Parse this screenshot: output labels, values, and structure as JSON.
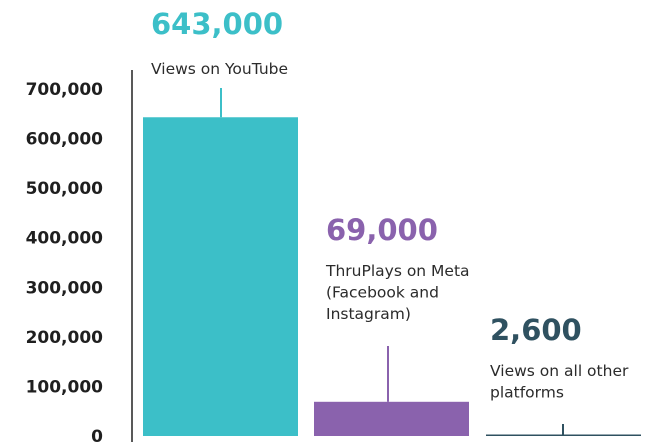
{
  "chart_data": {
    "type": "bar",
    "categories": [
      "YouTube",
      "Meta",
      "Other platforms"
    ],
    "values": [
      643000,
      69000,
      2600
    ],
    "ylim": [
      0,
      700000
    ],
    "yticks": [
      0,
      100000,
      200000,
      300000,
      400000,
      500000,
      600000,
      700000
    ],
    "ytick_labels": [
      "0",
      "100,000",
      "200,000",
      "300,000",
      "400,000",
      "500,000",
      "600,000",
      "700,000"
    ],
    "grid": false,
    "annotations": [
      {
        "value_label": "643,000",
        "lines": [
          "Views on YouTube"
        ],
        "color": "#3cbfc8"
      },
      {
        "value_label": "69,000",
        "lines": [
          "ThruPlays on Meta",
          "(Facebook and",
          "Instagram)"
        ],
        "color": "#8a62ad"
      },
      {
        "value_label": "2,600",
        "lines": [
          "Views on all other",
          "platforms"
        ],
        "color": "#2f5160"
      }
    ]
  }
}
